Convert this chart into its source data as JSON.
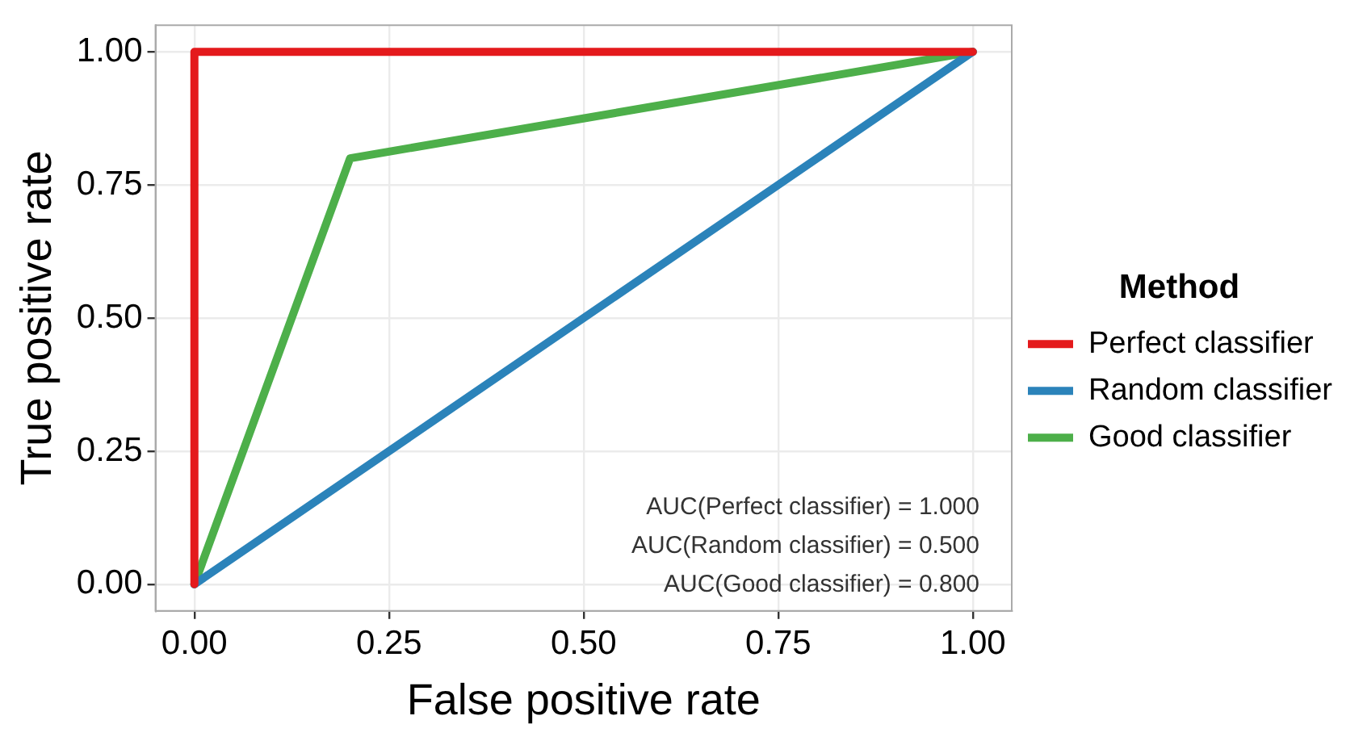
{
  "chart_data": {
    "type": "line",
    "xlabel": "False positive rate",
    "ylabel": "True positive rate",
    "legend_title": "Method",
    "series": [
      {
        "name": "Perfect classifier",
        "color": "#e41a1c",
        "x": [
          0,
          0,
          1
        ],
        "values": [
          0,
          1,
          1
        ]
      },
      {
        "name": "Random classifier",
        "color": "#2b83ba",
        "x": [
          0,
          1
        ],
        "values": [
          0,
          1
        ]
      },
      {
        "name": "Good classifier",
        "color": "#4daf4a",
        "x": [
          0,
          0.2,
          1
        ],
        "values": [
          0,
          0.8,
          1
        ]
      }
    ],
    "xlim": [
      -0.05,
      1.05
    ],
    "ylim": [
      -0.05,
      1.05
    ],
    "xticks": [
      {
        "value": 0,
        "label": "0.00"
      },
      {
        "value": 0.25,
        "label": "0.25"
      },
      {
        "value": 0.5,
        "label": "0.50"
      },
      {
        "value": 0.75,
        "label": "0.75"
      },
      {
        "value": 1,
        "label": "1.00"
      }
    ],
    "yticks": [
      {
        "value": 0,
        "label": "0.00"
      },
      {
        "value": 0.25,
        "label": "0.25"
      },
      {
        "value": 0.5,
        "label": "0.50"
      },
      {
        "value": 0.75,
        "label": "0.75"
      },
      {
        "value": 1,
        "label": "1.00"
      }
    ],
    "grid": true,
    "legend": "right",
    "marker": "none",
    "line_style": "solid",
    "annotations": [
      "AUC(Perfect classifier) = 1.000",
      "AUC(Random classifier) = 0.500",
      "AUC(Good classifier) = 0.800"
    ]
  }
}
